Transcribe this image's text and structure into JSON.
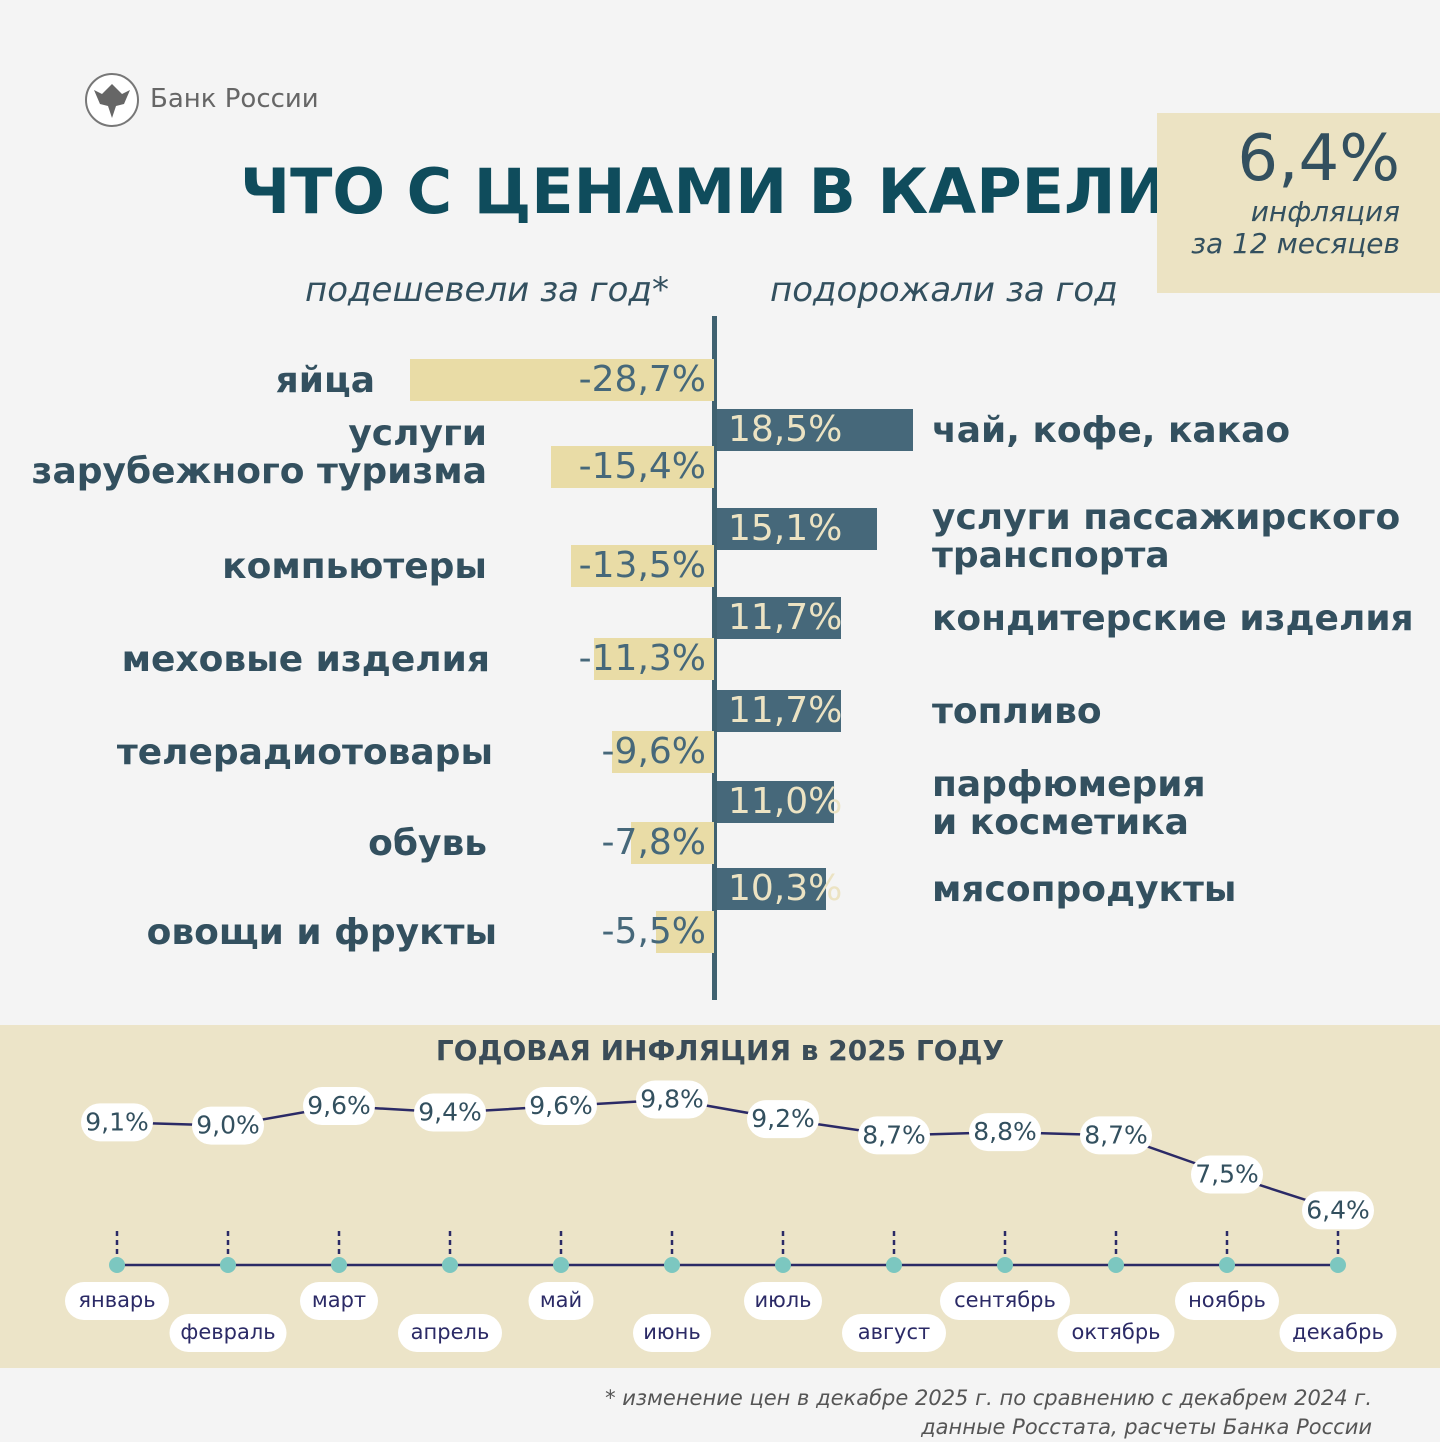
{
  "header": {
    "brand": "Банк России",
    "title": "ЧТО С ЦЕНАМИ В КАРЕЛИИ?",
    "headline_value": "6,4%",
    "headline_label": "инфляция\nза 12 месяцев"
  },
  "chart_data": [
    {
      "type": "bar",
      "orientation": "horizontal",
      "title": "подешевели за год*",
      "color": "#e9dca6",
      "categories": [
        "яйца",
        "услуги\nзарубежного туризма",
        "компьютеры",
        "меховые изделия",
        "телерадиотовары",
        "обувь",
        "овощи и фрукты"
      ],
      "values": [
        -28.7,
        -15.4,
        -13.5,
        -11.3,
        -9.6,
        -7.8,
        -5.5
      ],
      "value_labels": [
        "-28,7%",
        "-15,4%",
        "-13,5%",
        "-11,3%",
        "-9,6%",
        "-7,8%",
        "-5,5%"
      ]
    },
    {
      "type": "bar",
      "orientation": "horizontal",
      "title": "подорожали за год",
      "color": "#46687a",
      "categories": [
        "чай, кофе, какао",
        "услуги пассажирского\nтранспорта",
        "кондитерские изделия",
        "топливо",
        "парфюмерия\nи косметика",
        "мясопродукты"
      ],
      "values": [
        18.5,
        15.1,
        11.7,
        11.7,
        11.0,
        10.3
      ],
      "value_labels": [
        "18,5%",
        "15,1%",
        "11,7%",
        "11,7%",
        "11,0%",
        "10,3%"
      ]
    },
    {
      "type": "line",
      "title": "ГОДОВАЯ ИНФЛЯЦИЯ в 2025 ГОДУ",
      "color": "#2b2a66",
      "categories": [
        "январь",
        "февраль",
        "март",
        "апрель",
        "май",
        "июнь",
        "июль",
        "август",
        "сентябрь",
        "октябрь",
        "ноябрь",
        "декабрь"
      ],
      "values": [
        9.1,
        9.0,
        9.6,
        9.4,
        9.6,
        9.8,
        9.2,
        8.7,
        8.8,
        8.7,
        7.5,
        6.4
      ],
      "value_labels": [
        "9,1%",
        "9,0%",
        "9,6%",
        "9,4%",
        "9,6%",
        "9,8%",
        "9,2%",
        "8,7%",
        "8,8%",
        "8,7%",
        "7,5%",
        "6,4%"
      ]
    }
  ],
  "footnote": [
    "* изменение цен в декабре 2025 г. по сравнению с декабрем 2024 г.",
    "данные Росстата, расчеты Банка России"
  ]
}
